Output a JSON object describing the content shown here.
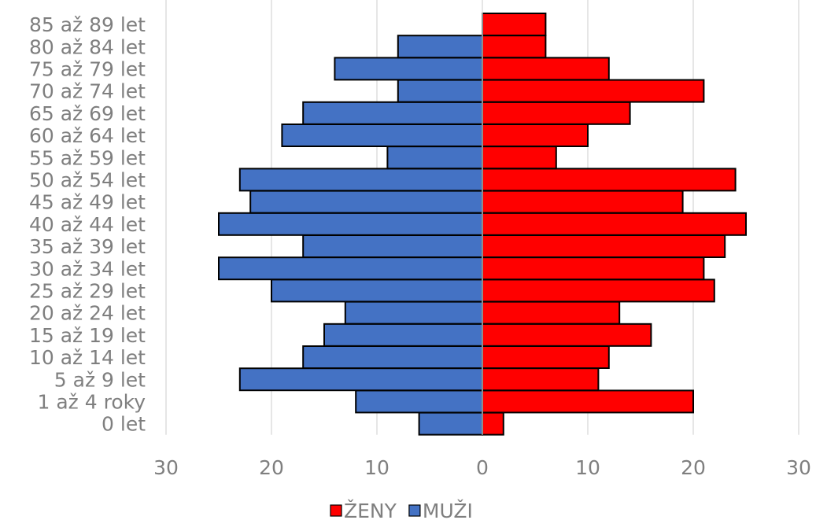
{
  "chart_data": {
    "type": "bar",
    "orientation": "horizontal",
    "layout": "population-pyramid",
    "categories": [
      "0 let",
      "1 až 4 roky",
      "5 až 9 let",
      "10 až 14 let",
      "15 až 19 let",
      "20 až 24 let",
      "25 až 29 let",
      "30 až 34 let",
      "35 až 39 let",
      "40 až 44 let",
      "45 až 49 let",
      "50 až 54 let",
      "55 až 59 let",
      "60 až 64 let",
      "65 až 69 let",
      "70 až 74 let",
      "75 až 79 let",
      "80 až 84 let",
      "85 až 89 let"
    ],
    "series": [
      {
        "name": "ŽENY",
        "side": "right",
        "color": "#ff0000",
        "values": [
          2,
          20,
          11,
          12,
          16,
          13,
          22,
          21,
          23,
          25,
          19,
          24,
          7,
          10,
          14,
          21,
          12,
          6,
          6
        ]
      },
      {
        "name": "MUŽI",
        "side": "left",
        "color": "#4472c4",
        "values": [
          6,
          12,
          23,
          17,
          15,
          13,
          20,
          25,
          17,
          25,
          22,
          23,
          9,
          19,
          17,
          8,
          14,
          8,
          0
        ]
      }
    ],
    "xlim": [
      -30,
      30
    ],
    "x_ticks": [
      {
        "value": -30,
        "label": "30"
      },
      {
        "value": -20,
        "label": "20"
      },
      {
        "value": -10,
        "label": "10"
      },
      {
        "value": 0,
        "label": "0"
      },
      {
        "value": 10,
        "label": "10"
      },
      {
        "value": 20,
        "label": "20"
      },
      {
        "value": 30,
        "label": "30"
      }
    ],
    "grid": "vertical",
    "legend_position": "bottom",
    "title": "",
    "xlabel": "",
    "ylabel": ""
  }
}
